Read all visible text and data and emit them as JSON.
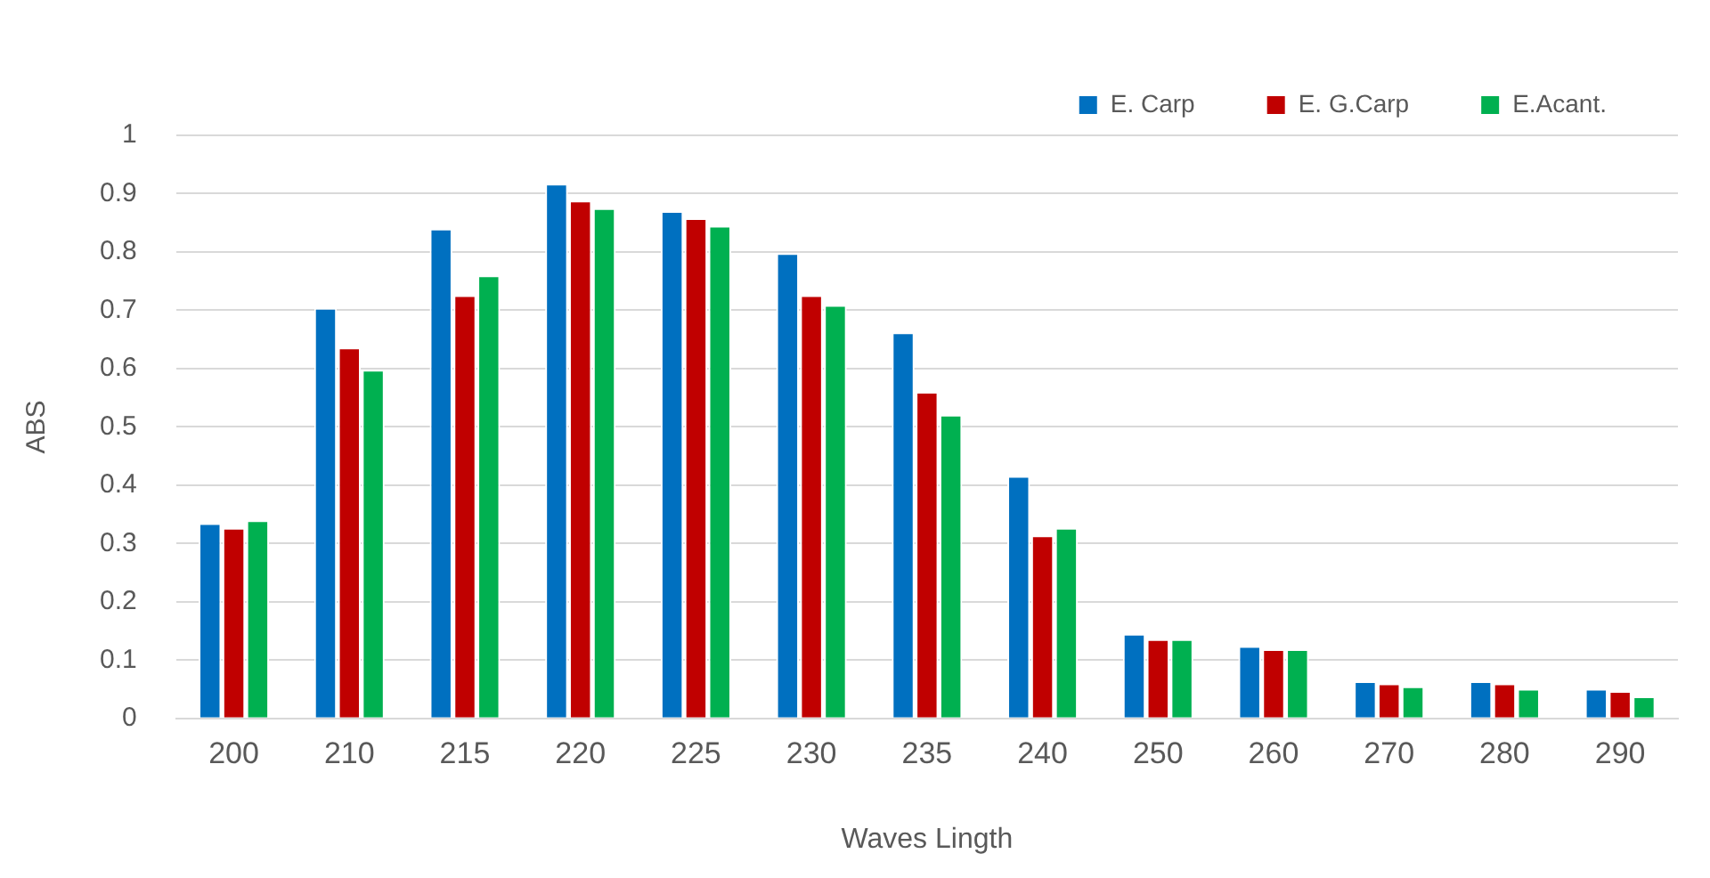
{
  "chart_data": {
    "type": "bar",
    "xlabel": "Waves Lingth",
    "ylabel": "ABS",
    "categories": [
      "200",
      "210",
      "215",
      "220",
      "225",
      "230",
      "235",
      "240",
      "250",
      "260",
      "270",
      "280",
      "290"
    ],
    "series": [
      {
        "name": "E. Carp",
        "color": "#0070c0",
        "values": [
          0.335,
          0.704,
          0.84,
          0.917,
          0.87,
          0.798,
          0.662,
          0.416,
          0.145,
          0.124,
          0.064,
          0.064,
          0.051
        ]
      },
      {
        "name": "E. G.Carp",
        "color": "#c00000",
        "values": [
          0.327,
          0.636,
          0.726,
          0.888,
          0.858,
          0.726,
          0.56,
          0.314,
          0.136,
          0.119,
          0.06,
          0.06,
          0.047
        ]
      },
      {
        "name": "E.Acant.",
        "color": "#00b050",
        "values": [
          0.34,
          0.598,
          0.76,
          0.875,
          0.845,
          0.709,
          0.521,
          0.327,
          0.136,
          0.119,
          0.055,
          0.051,
          0.038
        ]
      }
    ],
    "ylim": [
      0,
      1
    ],
    "yticks": [
      0,
      0.1,
      0.2,
      0.3,
      0.4,
      0.5,
      0.6,
      0.7,
      0.8,
      0.9,
      1
    ],
    "grid": "y",
    "legend": "top right"
  }
}
